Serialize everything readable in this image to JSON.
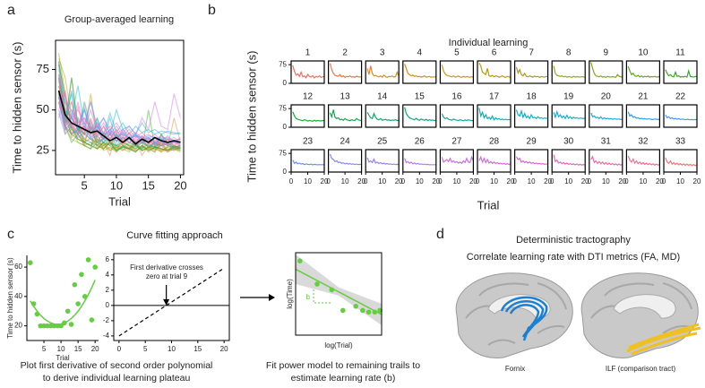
{
  "panel_labels": [
    "a",
    "b",
    "c",
    "d"
  ],
  "panel_c": {
    "title": "Curve fitting approach",
    "captions": [
      "Plot first derivative of second order polynomial",
      "to derive individual learning plateau",
      "Fit power model to remaining trails to",
      "estimate learning rate (b)"
    ]
  },
  "panel_d": {
    "title": "Deterministic tractography",
    "subtitle": "Correlate learning rate with DTI metrics (FA, MD)",
    "labels": [
      "Fornix",
      "ILF (comparison tract)"
    ]
  },
  "chart_data": [
    {
      "type": "line",
      "title": "Group-averaged learning",
      "x_label": "Trial",
      "y_label": "Time to hidden sensor (s)",
      "x": [
        1,
        2,
        3,
        4,
        5,
        6,
        7,
        8,
        9,
        10,
        11,
        12,
        13,
        14,
        15,
        16,
        17,
        18,
        19,
        20
      ],
      "mean": {
        "color": "#000000",
        "values": [
          62,
          47,
          42,
          40,
          38,
          36,
          37,
          34,
          31,
          33,
          30,
          33,
          29,
          32,
          30,
          33,
          31,
          30,
          31,
          30
        ]
      },
      "xlim": [
        0.5,
        20.5
      ],
      "ylim": [
        10,
        93
      ],
      "xticks": [
        5,
        10,
        15,
        20
      ],
      "yticks": [
        25,
        50,
        75
      ]
    },
    {
      "type": "small_multiples",
      "title": "Individual learning",
      "x_label": "Trial",
      "y_label": "Time to hidden sensor (s)",
      "xlim": [
        0,
        20
      ],
      "ylim": [
        0,
        90
      ],
      "xticks": [
        0,
        10,
        20
      ],
      "yticks": [
        0,
        75
      ],
      "series": [
        {
          "name": "1",
          "color": "#f07060",
          "values": [
            72,
            48,
            33,
            38,
            28,
            45,
            26,
            30,
            22,
            36,
            28,
            25,
            31,
            22,
            28,
            25,
            30,
            24,
            26,
            28
          ]
        },
        {
          "name": "2",
          "color": "#e8784a",
          "values": [
            80,
            55,
            40,
            32,
            30,
            28,
            35,
            26,
            30,
            24,
            28,
            26,
            30,
            25,
            27,
            24,
            29,
            26,
            25,
            27
          ]
        },
        {
          "name": "3",
          "color": "#d98a30",
          "values": [
            60,
            35,
            70,
            40,
            30,
            32,
            28,
            26,
            30,
            25,
            33,
            27,
            24,
            28,
            26,
            30,
            25,
            27,
            45,
            30
          ]
        },
        {
          "name": "4",
          "color": "#d49020",
          "values": [
            78,
            60,
            40,
            35,
            30,
            33,
            28,
            30,
            26,
            28,
            25,
            27,
            30,
            25,
            26,
            28,
            24,
            26,
            25,
            27
          ]
        },
        {
          "name": "5",
          "color": "#c89a20",
          "values": [
            75,
            50,
            38,
            32,
            30,
            28,
            26,
            30,
            25,
            27,
            29,
            26,
            24,
            28,
            25,
            27,
            26,
            24,
            27,
            25
          ]
        },
        {
          "name": "6",
          "color": "#b89a10",
          "values": [
            82,
            70,
            45,
            40,
            35,
            60,
            30,
            28,
            32,
            26,
            30,
            28,
            25,
            27,
            30,
            26,
            24,
            28,
            26,
            25
          ]
        },
        {
          "name": "7",
          "color": "#a8a010",
          "values": [
            65,
            42,
            55,
            35,
            30,
            40,
            28,
            26,
            30,
            27,
            25,
            29,
            26,
            28,
            24,
            27,
            26,
            25,
            28,
            26
          ]
        },
        {
          "name": "8",
          "color": "#98a818",
          "values": [
            70,
            40,
            32,
            30,
            28,
            30,
            26,
            28,
            25,
            27,
            26,
            24,
            28,
            25,
            27,
            26,
            25,
            27,
            26,
            24
          ]
        },
        {
          "name": "9",
          "color": "#80a818",
          "values": [
            85,
            60,
            40,
            30,
            28,
            26,
            30,
            25,
            27,
            24,
            28,
            26,
            25,
            27,
            26,
            24,
            35,
            28,
            26,
            25
          ]
        },
        {
          "name": "10",
          "color": "#60a820",
          "values": [
            68,
            50,
            35,
            40,
            30,
            28,
            32,
            26,
            30,
            25,
            28,
            26,
            29,
            25,
            27,
            26,
            28,
            25,
            26,
            27
          ]
        },
        {
          "name": "11",
          "color": "#40a828",
          "values": [
            55,
            40,
            30,
            35,
            28,
            26,
            45,
            28,
            30,
            25,
            27,
            26,
            28,
            25,
            50,
            27,
            26,
            25,
            28,
            26
          ]
        },
        {
          "name": "12",
          "color": "#20a838",
          "values": [
            62,
            45,
            35,
            32,
            30,
            28,
            26,
            30,
            28,
            25,
            27,
            26,
            24,
            28,
            25,
            27,
            26,
            25,
            27,
            26
          ]
        },
        {
          "name": "13",
          "color": "#10a850",
          "values": [
            58,
            42,
            70,
            40,
            35,
            38,
            30,
            32,
            28,
            35,
            30,
            28,
            26,
            30,
            28,
            27,
            35,
            30,
            28,
            27
          ]
        },
        {
          "name": "14",
          "color": "#10a868",
          "values": [
            60,
            48,
            38,
            35,
            55,
            40,
            32,
            30,
            35,
            28,
            30,
            32,
            28,
            30,
            27,
            29,
            28,
            30,
            27,
            28
          ]
        },
        {
          "name": "15",
          "color": "#10a880",
          "values": [
            80,
            55,
            45,
            38,
            35,
            32,
            30,
            36,
            30,
            28,
            33,
            30,
            28,
            32,
            27,
            30,
            28,
            29,
            27,
            28
          ]
        },
        {
          "name": "16",
          "color": "#10a898",
          "values": [
            55,
            40,
            35,
            38,
            32,
            30,
            28,
            33,
            30,
            28,
            27,
            30,
            28,
            26,
            29,
            27,
            30,
            28,
            27,
            26
          ]
        },
        {
          "name": "17",
          "color": "#10b0b0",
          "values": [
            78,
            45,
            60,
            38,
            50,
            35,
            40,
            32,
            45,
            30,
            38,
            32,
            35,
            30,
            33,
            30,
            32,
            30,
            31,
            30
          ]
        },
        {
          "name": "18",
          "color": "#10b0c8",
          "values": [
            70,
            50,
            45,
            65,
            40,
            55,
            38,
            45,
            35,
            50,
            38,
            40,
            35,
            42,
            36,
            38,
            35,
            37,
            36,
            35
          ]
        },
        {
          "name": "19",
          "color": "#18b0d8",
          "values": [
            60,
            40,
            62,
            42,
            50,
            38,
            45,
            35,
            48,
            36,
            42,
            35,
            40,
            36,
            38,
            35,
            37,
            36,
            35,
            36
          ]
        },
        {
          "name": "20",
          "color": "#20a8e0",
          "values": [
            58,
            42,
            45,
            38,
            40,
            35,
            42,
            33,
            38,
            34,
            36,
            33,
            35,
            32,
            34,
            33,
            32,
            33,
            31,
            32
          ]
        },
        {
          "name": "21",
          "color": "#30a0e8",
          "values": [
            62,
            45,
            50,
            40,
            42,
            36,
            38,
            34,
            36,
            33,
            35,
            32,
            34,
            33,
            32,
            31,
            33,
            32,
            31,
            32
          ]
        },
        {
          "name": "22",
          "color": "#4898f0",
          "values": [
            50,
            38,
            42,
            35,
            38,
            33,
            36,
            32,
            35,
            31,
            33,
            32,
            30,
            32,
            31,
            30,
            31,
            30,
            31,
            30
          ]
        },
        {
          "name": "23",
          "color": "#6890f0",
          "values": [
            48,
            35,
            40,
            33,
            36,
            32,
            34,
            30,
            33,
            31,
            30,
            32,
            29,
            31,
            30,
            29,
            30,
            29,
            30,
            29
          ]
        },
        {
          "name": "24",
          "color": "#8888f0",
          "values": [
            72,
            55,
            50,
            42,
            45,
            38,
            40,
            35,
            37,
            33,
            35,
            32,
            34,
            31,
            33,
            30,
            32,
            30,
            31,
            30
          ]
        },
        {
          "name": "25",
          "color": "#a080f0",
          "values": [
            58,
            40,
            45,
            38,
            52,
            36,
            40,
            34,
            38,
            33,
            36,
            32,
            34,
            31,
            33,
            30,
            32,
            30,
            31,
            30
          ]
        },
        {
          "name": "26",
          "color": "#b878f0",
          "values": [
            55,
            38,
            42,
            35,
            40,
            33,
            37,
            32,
            35,
            31,
            33,
            30,
            32,
            30,
            31,
            29,
            30,
            29,
            30,
            29
          ]
        },
        {
          "name": "27",
          "color": "#c870e8",
          "values": [
            60,
            40,
            45,
            50,
            42,
            55,
            40,
            45,
            38,
            42,
            36,
            40,
            35,
            45,
            38,
            55,
            40,
            38,
            60,
            45
          ]
        },
        {
          "name": "28",
          "color": "#d868e0",
          "values": [
            45,
            60,
            40,
            55,
            38,
            50,
            36,
            42,
            35,
            40,
            34,
            38,
            33,
            36,
            32,
            35,
            31,
            34,
            30,
            33
          ]
        },
        {
          "name": "29",
          "color": "#e068d0",
          "values": [
            62,
            50,
            55,
            40,
            45,
            38,
            42,
            36,
            40,
            35,
            38,
            34,
            36,
            33,
            35,
            32,
            34,
            31,
            33,
            30
          ]
        },
        {
          "name": "30",
          "color": "#e868c0",
          "values": [
            70,
            42,
            48,
            36,
            40,
            34,
            38,
            32,
            36,
            31,
            34,
            30,
            33,
            29,
            32,
            28,
            31,
            28,
            30,
            28
          ]
        },
        {
          "name": "31",
          "color": "#f068a8",
          "values": [
            50,
            62,
            38,
            45,
            35,
            42,
            33,
            40,
            32,
            38,
            31,
            36,
            30,
            34,
            29,
            33,
            28,
            32,
            28,
            31
          ]
        },
        {
          "name": "32",
          "color": "#f07090",
          "values": [
            65,
            48,
            40,
            52,
            36,
            44,
            34,
            40,
            32,
            38,
            31,
            36,
            30,
            34,
            29,
            33,
            28,
            32,
            28,
            30
          ]
        },
        {
          "name": "33",
          "color": "#f07878",
          "values": [
            58,
            40,
            35,
            45,
            32,
            38,
            30,
            36,
            29,
            34,
            28,
            33,
            27,
            32,
            27,
            31,
            26,
            30,
            26,
            29
          ]
        }
      ]
    },
    {
      "type": "scatter",
      "x_label": "Trial",
      "y_label": "Time to hidden sensor (s)",
      "x": [
        1,
        2,
        3,
        4,
        5,
        6,
        7,
        8,
        9,
        10,
        11,
        12,
        13,
        14,
        15,
        16,
        17,
        18,
        19,
        20
      ],
      "points": {
        "color": "#66cc44",
        "values": [
          63,
          35,
          28,
          20,
          20,
          20,
          20,
          20,
          20,
          20,
          22,
          30,
          21,
          48,
          35,
          55,
          40,
          65,
          24,
          60
        ]
      },
      "fit": {
        "color": "#66cc44",
        "values": [
          37,
          33.25,
          30,
          27.25,
          25,
          23.25,
          22,
          21.25,
          21,
          21.25,
          22,
          23.25,
          25,
          27.25,
          30,
          33.25,
          37,
          41.25,
          46,
          51.25
        ]
      },
      "xlim": [
        0,
        21
      ],
      "ylim": [
        10,
        68
      ],
      "xticks": [
        5,
        10,
        15,
        20
      ],
      "yticks": [
        20,
        40,
        60
      ]
    },
    {
      "type": "line",
      "x": [
        0,
        20
      ],
      "values": [
        -4,
        4.89
      ],
      "color": "#000000",
      "annotation": [
        "First derivative crosses",
        "zero at trial 9"
      ],
      "xlim": [
        -1,
        21
      ],
      "ylim": [
        -4.6,
        6.8
      ],
      "xticks": [
        0,
        5,
        10,
        15,
        20
      ],
      "yticks": [
        -4,
        -2,
        0,
        2,
        4,
        6
      ]
    },
    {
      "type": "scatter",
      "x_label": "log(Trial)",
      "y_label": "log(Time)",
      "annotation": "b",
      "x": [
        0.05,
        0.25,
        0.42,
        0.55,
        0.7,
        0.78,
        0.85,
        0.92,
        0.98
      ],
      "values": [
        0.9,
        0.62,
        0.55,
        0.3,
        0.35,
        0.3,
        0.28,
        0.28,
        0.3
      ],
      "color": "#66cc44",
      "fit": {
        "x": [
          0,
          1
        ],
        "values": [
          0.8,
          0.25
        ]
      },
      "band": {
        "x": [
          0,
          0.5,
          1
        ],
        "lower": [
          0.62,
          0.48,
          0.12
        ],
        "upper": [
          0.98,
          0.58,
          0.38
        ],
        "color": "#d9d9d9"
      },
      "xlim": [
        0,
        1
      ],
      "ylim": [
        0,
        1
      ]
    }
  ]
}
